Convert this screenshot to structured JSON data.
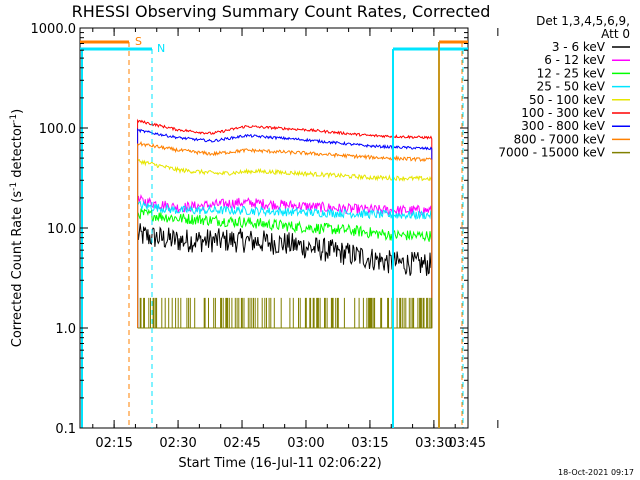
{
  "chart_data": {
    "type": "line",
    "title": "RHESSI Observing Summary Count Rates, Corrected",
    "xlabel": "Start Time (16-Jul-11 02:06:22)",
    "ylabel_main": "Corrected Count Rate (s",
    "ylabel_sup1": "-1",
    "ylabel_mid": " detector",
    "ylabel_sup2": "-1",
    "ylabel_end": ")",
    "yscale": "log",
    "ylim": [
      0.1,
      1000
    ],
    "xlim_min": [
      7,
      98
    ],
    "ytick_labels": [
      {
        "value": 0.1,
        "label": "0.1"
      },
      {
        "value": 1,
        "label": "1.0"
      },
      {
        "value": 10,
        "label": "10.0"
      },
      {
        "value": 100,
        "label": "100.0"
      },
      {
        "value": 1000,
        "label": "1000.0"
      }
    ],
    "xtick_labels": [
      {
        "min": 15,
        "label": "02:15"
      },
      {
        "min": 30,
        "label": "02:30"
      },
      {
        "min": 45,
        "label": "02:45"
      },
      {
        "min": 60,
        "label": "03:00"
      },
      {
        "min": 75,
        "label": "03:15"
      },
      {
        "min": 90,
        "label": "03:30"
      },
      {
        "min": 105,
        "label": "03:45"
      }
    ],
    "legend_header": [
      "Det 1,3,4,5,6,9,",
      "Att 0"
    ],
    "data_range_min": [
      20.5,
      89.5
    ],
    "series": [
      {
        "name": "3 - 6 keV",
        "color": "#000000",
        "profile": {
          "t": [
            20.5,
            30,
            45,
            55,
            70,
            80,
            89.5
          ],
          "v": [
            8.5,
            7.5,
            7.5,
            7.0,
            5.5,
            4.5,
            4.3
          ]
        }
      },
      {
        "name": "6 - 12 keV",
        "color": "#ff00ff",
        "profile": {
          "t": [
            20.5,
            30,
            45,
            55,
            70,
            80,
            89.5
          ],
          "v": [
            19,
            16,
            18,
            17,
            15.5,
            15,
            15
          ]
        }
      },
      {
        "name": "12 - 25 keV",
        "color": "#00ff00",
        "profile": {
          "t": [
            20.5,
            30,
            45,
            55,
            70,
            80,
            89.5
          ],
          "v": [
            14,
            12.5,
            11.5,
            10.5,
            9.5,
            8.5,
            8.3
          ]
        }
      },
      {
        "name": "25 - 50 keV",
        "color": "#00e5ff",
        "profile": {
          "t": [
            20.5,
            30,
            45,
            55,
            70,
            80,
            89.5
          ],
          "v": [
            17,
            15,
            15,
            14.5,
            14,
            13.5,
            13.5
          ]
        }
      },
      {
        "name": "50 - 100 keV",
        "color": "#e6e600",
        "profile": {
          "t": [
            20.5,
            30,
            40,
            48,
            60,
            75,
            89.5
          ],
          "v": [
            47,
            38,
            35,
            37,
            35,
            32,
            31
          ]
        }
      },
      {
        "name": "100 - 300 keV",
        "color": "#ff0000",
        "profile": {
          "t": [
            20.5,
            30,
            38,
            46,
            60,
            75,
            89.5
          ],
          "v": [
            118,
            96,
            88,
            104,
            96,
            84,
            80
          ]
        }
      },
      {
        "name": "300 - 800 keV",
        "color": "#0000ff",
        "profile": {
          "t": [
            20.5,
            30,
            38,
            46,
            60,
            75,
            89.5
          ],
          "v": [
            95,
            80,
            74,
            84,
            76,
            66,
            62
          ]
        }
      },
      {
        "name": "800 - 7000 keV",
        "color": "#ff8000",
        "profile": {
          "t": [
            20.5,
            30,
            38,
            46,
            60,
            75,
            89.5
          ],
          "v": [
            70,
            60,
            55,
            60,
            56,
            51,
            48
          ]
        }
      },
      {
        "name": "7000 - 15000 keV",
        "color": "#808000",
        "profile": {
          "t": [
            20.5,
            89.5
          ],
          "v": [
            1,
            1
          ]
        }
      }
    ],
    "saa_markers": {
      "color": "#ff8000",
      "label": "S"
    },
    "night_markers": {
      "color": "#00e5ff",
      "label": "N"
    }
  },
  "footer_timestamp": "18-Oct-2021 09:17",
  "colors": {
    "axes": "#000000",
    "background": "#ffffff"
  }
}
